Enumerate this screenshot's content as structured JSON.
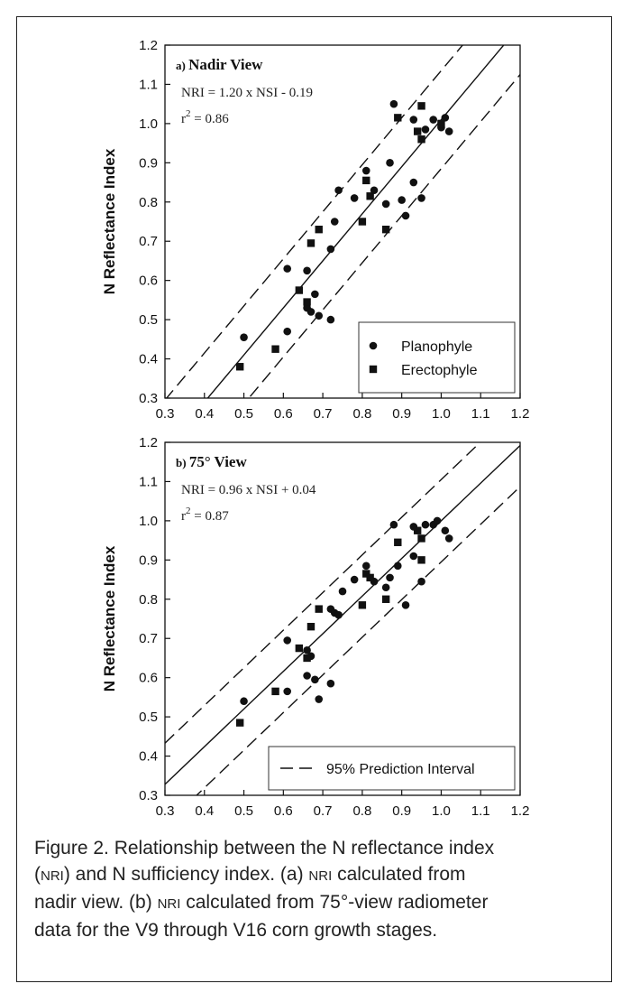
{
  "chart_data": [
    {
      "type": "scatter",
      "panel_label": "a)",
      "title": "Nadir View",
      "equation": "NRI = 1.20 x NSI - 0.19",
      "r2_label": "r",
      "r2_sup": "2",
      "r2_value": " = 0.86",
      "xlabel": "",
      "ylabel": "N Reflectance Index",
      "xlim": [
        0.3,
        1.2
      ],
      "ylim": [
        0.3,
        1.2
      ],
      "ticks": [
        "0.3",
        "0.4",
        "0.5",
        "0.6",
        "0.7",
        "0.8",
        "0.9",
        "1.0",
        "1.1",
        "1.2"
      ],
      "legend": {
        "position": "bottom-right",
        "entries": [
          "Planophyle",
          "Erectophyle"
        ]
      },
      "regression": {
        "slope": 1.2,
        "intercept": -0.19,
        "style": "solid"
      },
      "prediction_interval": {
        "offset": 0.125,
        "style": "dashed"
      },
      "series": [
        {
          "name": "Planophyle",
          "marker": "circle",
          "points": [
            [
              0.5,
              0.455
            ],
            [
              0.61,
              0.47
            ],
            [
              0.61,
              0.63
            ],
            [
              0.66,
              0.625
            ],
            [
              0.66,
              0.53
            ],
            [
              0.67,
              0.52
            ],
            [
              0.68,
              0.565
            ],
            [
              0.69,
              0.51
            ],
            [
              0.72,
              0.5
            ],
            [
              0.72,
              0.68
            ],
            [
              0.73,
              0.75
            ],
            [
              0.74,
              0.83
            ],
            [
              0.78,
              0.81
            ],
            [
              0.81,
              0.88
            ],
            [
              0.83,
              0.83
            ],
            [
              0.86,
              0.795
            ],
            [
              0.87,
              0.9
            ],
            [
              0.88,
              1.05
            ],
            [
              0.9,
              0.805
            ],
            [
              0.91,
              0.765
            ],
            [
              0.93,
              0.85
            ],
            [
              0.93,
              1.01
            ],
            [
              0.95,
              0.81
            ],
            [
              0.96,
              0.985
            ],
            [
              0.98,
              1.01
            ],
            [
              1.0,
              0.99
            ],
            [
              1.01,
              1.015
            ],
            [
              1.02,
              0.98
            ]
          ]
        },
        {
          "name": "Erectophyle",
          "marker": "square",
          "points": [
            [
              0.49,
              0.38
            ],
            [
              0.58,
              0.425
            ],
            [
              0.64,
              0.575
            ],
            [
              0.66,
              0.545
            ],
            [
              0.67,
              0.695
            ],
            [
              0.69,
              0.73
            ],
            [
              0.8,
              0.75
            ],
            [
              0.81,
              0.855
            ],
            [
              0.82,
              0.815
            ],
            [
              0.86,
              0.73
            ],
            [
              0.89,
              1.015
            ],
            [
              0.94,
              0.98
            ],
            [
              0.95,
              1.045
            ],
            [
              0.95,
              0.96
            ],
            [
              1.0,
              1.0
            ]
          ]
        }
      ]
    },
    {
      "type": "scatter",
      "panel_label": "b)",
      "title": "75° View",
      "equation": "NRI = 0.96 x NSI + 0.04",
      "r2_label": "r",
      "r2_sup": "2",
      "r2_value": " = 0.87",
      "xlabel": "N Sufficiency Index",
      "ylabel": "N Reflectance Index",
      "xlim": [
        0.3,
        1.2
      ],
      "ylim": [
        0.3,
        1.2
      ],
      "ticks": [
        "0.3",
        "0.4",
        "0.5",
        "0.6",
        "0.7",
        "0.8",
        "0.9",
        "1.0",
        "1.1",
        "1.2"
      ],
      "legend": {
        "position": "bottom-right",
        "entries": [
          "95% Prediction Interval"
        ]
      },
      "regression": {
        "slope": 0.96,
        "intercept": 0.04,
        "style": "solid"
      },
      "prediction_interval": {
        "offset": 0.105,
        "style": "dashed"
      },
      "series": [
        {
          "name": "Planophyle",
          "marker": "circle",
          "points": [
            [
              0.5,
              0.54
            ],
            [
              0.61,
              0.565
            ],
            [
              0.61,
              0.695
            ],
            [
              0.66,
              0.605
            ],
            [
              0.66,
              0.67
            ],
            [
              0.67,
              0.655
            ],
            [
              0.68,
              0.595
            ],
            [
              0.69,
              0.545
            ],
            [
              0.72,
              0.585
            ],
            [
              0.72,
              0.775
            ],
            [
              0.73,
              0.765
            ],
            [
              0.74,
              0.76
            ],
            [
              0.75,
              0.82
            ],
            [
              0.78,
              0.85
            ],
            [
              0.81,
              0.885
            ],
            [
              0.83,
              0.845
            ],
            [
              0.86,
              0.83
            ],
            [
              0.87,
              0.855
            ],
            [
              0.88,
              0.99
            ],
            [
              0.89,
              0.885
            ],
            [
              0.91,
              0.785
            ],
            [
              0.93,
              0.91
            ],
            [
              0.93,
              0.985
            ],
            [
              0.95,
              0.845
            ],
            [
              0.96,
              0.99
            ],
            [
              0.98,
              0.99
            ],
            [
              0.99,
              1.0
            ],
            [
              1.01,
              0.975
            ],
            [
              1.02,
              0.955
            ]
          ]
        },
        {
          "name": "Erectophyle",
          "marker": "square",
          "points": [
            [
              0.49,
              0.485
            ],
            [
              0.58,
              0.565
            ],
            [
              0.64,
              0.675
            ],
            [
              0.66,
              0.65
            ],
            [
              0.67,
              0.73
            ],
            [
              0.69,
              0.775
            ],
            [
              0.8,
              0.785
            ],
            [
              0.81,
              0.865
            ],
            [
              0.82,
              0.855
            ],
            [
              0.86,
              0.8
            ],
            [
              0.89,
              0.945
            ],
            [
              0.94,
              0.975
            ],
            [
              0.95,
              0.955
            ],
            [
              0.95,
              0.9
            ]
          ]
        }
      ]
    }
  ],
  "caption": {
    "line1": "Figure 2. Relationship between the N reflectance index",
    "line2_a": "(",
    "line2_sc1": "NRI",
    "line2_b": ") and N sufficiency index. (a) ",
    "line2_sc2": "NRI",
    "line2_c": " calculated from",
    "line3_a": "nadir view. (b) ",
    "line3_sc": "NRI",
    "line3_b": " calculated from 75°-view radiometer",
    "line4": "data for the V9 through V16 corn growth stages."
  }
}
